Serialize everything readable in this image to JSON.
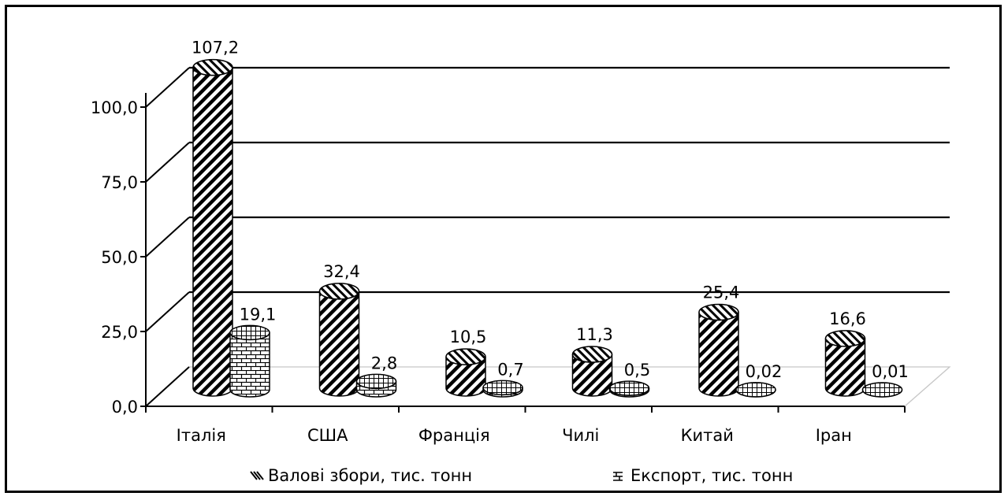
{
  "chart_data": {
    "type": "bar",
    "title": "",
    "xlabel": "",
    "ylabel": "",
    "ylim": [
      0,
      100
    ],
    "y_ticks": [
      "0,0",
      "25,0",
      "50,0",
      "75,0",
      "100,0"
    ],
    "y_tick_values": [
      0,
      25,
      50,
      75,
      100
    ],
    "categories": [
      "Італія",
      "США",
      "Франція",
      "Чилі",
      "Китай",
      "Іран"
    ],
    "series": [
      {
        "name": "Валові збори, тис. тонн",
        "values": [
          107.2,
          32.4,
          10.5,
          11.3,
          25.4,
          16.6
        ],
        "labels": [
          "107,2",
          "32,4",
          "10,5",
          "11,3",
          "25,4",
          "16,6"
        ],
        "pattern": "diagonal-hatch"
      },
      {
        "name": "Експорт, тис. тонн",
        "values": [
          19.1,
          2.8,
          0.7,
          0.5,
          0.02,
          0.01
        ],
        "labels": [
          "19,1",
          "2,8",
          "0,7",
          "0,5",
          "0,02",
          "0,01"
        ],
        "pattern": "brick"
      }
    ],
    "grid": true,
    "legend_position": "bottom",
    "style": "3d-cylinder"
  }
}
